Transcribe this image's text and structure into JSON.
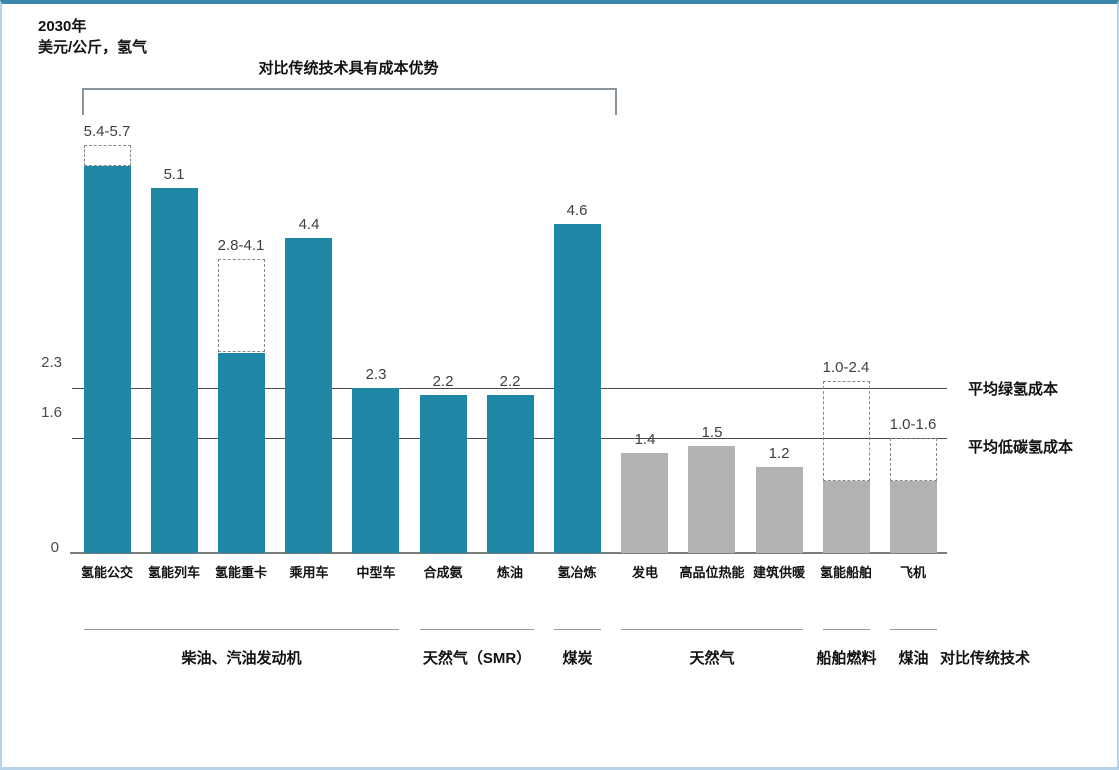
{
  "title": {
    "line1": "2030年",
    "line2": "美元/公斤，氢气"
  },
  "bracket_label": "对比传统技术具有成本优势",
  "comparison_row_label": "对比传统技术",
  "colors": {
    "teal_bar": "#1e87a5",
    "gray_bar": "#b2b2b2",
    "reference_line": "#4a4a4a",
    "frame_top": "#3b87a9",
    "frame_side": "#b7d2e8"
  },
  "chart_data": {
    "type": "bar",
    "title": "2030年 美元/公斤，氢气",
    "xlabel": "",
    "ylabel": "美元/公斤，氢气",
    "ylim": [
      0,
      6
    ],
    "yticks": [
      "2.3",
      "1.6",
      "0"
    ],
    "grid": false,
    "legend_position": "none",
    "categories": [
      "氢能公交",
      "氢能列车",
      "氢能重卡",
      "乘用车",
      "中型车",
      "合成氨",
      "炼油",
      "氢冶炼",
      "发电",
      "高品位热能",
      "建筑供暖",
      "氢能船舶",
      "飞机"
    ],
    "bars": [
      {
        "label": "氢能公交",
        "value": 5.4,
        "range_max": 5.7,
        "display": "5.4-5.7",
        "color": "teal"
      },
      {
        "label": "氢能列车",
        "value": 5.1,
        "range_max": null,
        "display": "5.1",
        "color": "teal"
      },
      {
        "label": "氢能重卡",
        "value": 2.8,
        "range_max": 4.1,
        "display": "2.8-4.1",
        "color": "teal"
      },
      {
        "label": "乘用车",
        "value": 4.4,
        "range_max": null,
        "display": "4.4",
        "color": "teal"
      },
      {
        "label": "中型车",
        "value": 2.3,
        "range_max": null,
        "display": "2.3",
        "color": "teal"
      },
      {
        "label": "合成氨",
        "value": 2.2,
        "range_max": null,
        "display": "2.2",
        "color": "teal"
      },
      {
        "label": "炼油",
        "value": 2.2,
        "range_max": null,
        "display": "2.2",
        "color": "teal"
      },
      {
        "label": "氢冶炼",
        "value": 4.6,
        "range_max": null,
        "display": "4.6",
        "color": "teal"
      },
      {
        "label": "发电",
        "value": 1.4,
        "range_max": null,
        "display": "1.4",
        "color": "gray"
      },
      {
        "label": "高品位热能",
        "value": 1.5,
        "range_max": null,
        "display": "1.5",
        "color": "gray"
      },
      {
        "label": "建筑供暖",
        "value": 1.2,
        "range_max": null,
        "display": "1.2",
        "color": "gray"
      },
      {
        "label": "氢能船舶",
        "value": 1.0,
        "range_max": 2.4,
        "display": "1.0-2.4",
        "color": "gray"
      },
      {
        "label": "飞机",
        "value": 1.0,
        "range_max": 1.6,
        "display": "1.0-1.6",
        "color": "gray"
      }
    ],
    "reference_lines": [
      {
        "value": 2.3,
        "tick": "2.3",
        "label": "平均绿氢成本"
      },
      {
        "value": 1.6,
        "tick": "1.6",
        "label": "平均低碳氢成本"
      }
    ],
    "bracket": {
      "label": "对比传统技术具有成本优势",
      "from_bar": 0,
      "to_bar": 7
    },
    "groups": [
      {
        "label": "柴油、汽油发动机",
        "from_bar": 0,
        "to_bar": 4
      },
      {
        "label": "天然气（SMR）",
        "from_bar": 5,
        "to_bar": 6
      },
      {
        "label": "煤炭",
        "from_bar": 7,
        "to_bar": 7
      },
      {
        "label": "天然气",
        "from_bar": 8,
        "to_bar": 10
      },
      {
        "label": "船舶燃料",
        "from_bar": 11,
        "to_bar": 11
      },
      {
        "label": "煤油",
        "from_bar": 12,
        "to_bar": 12
      }
    ]
  }
}
